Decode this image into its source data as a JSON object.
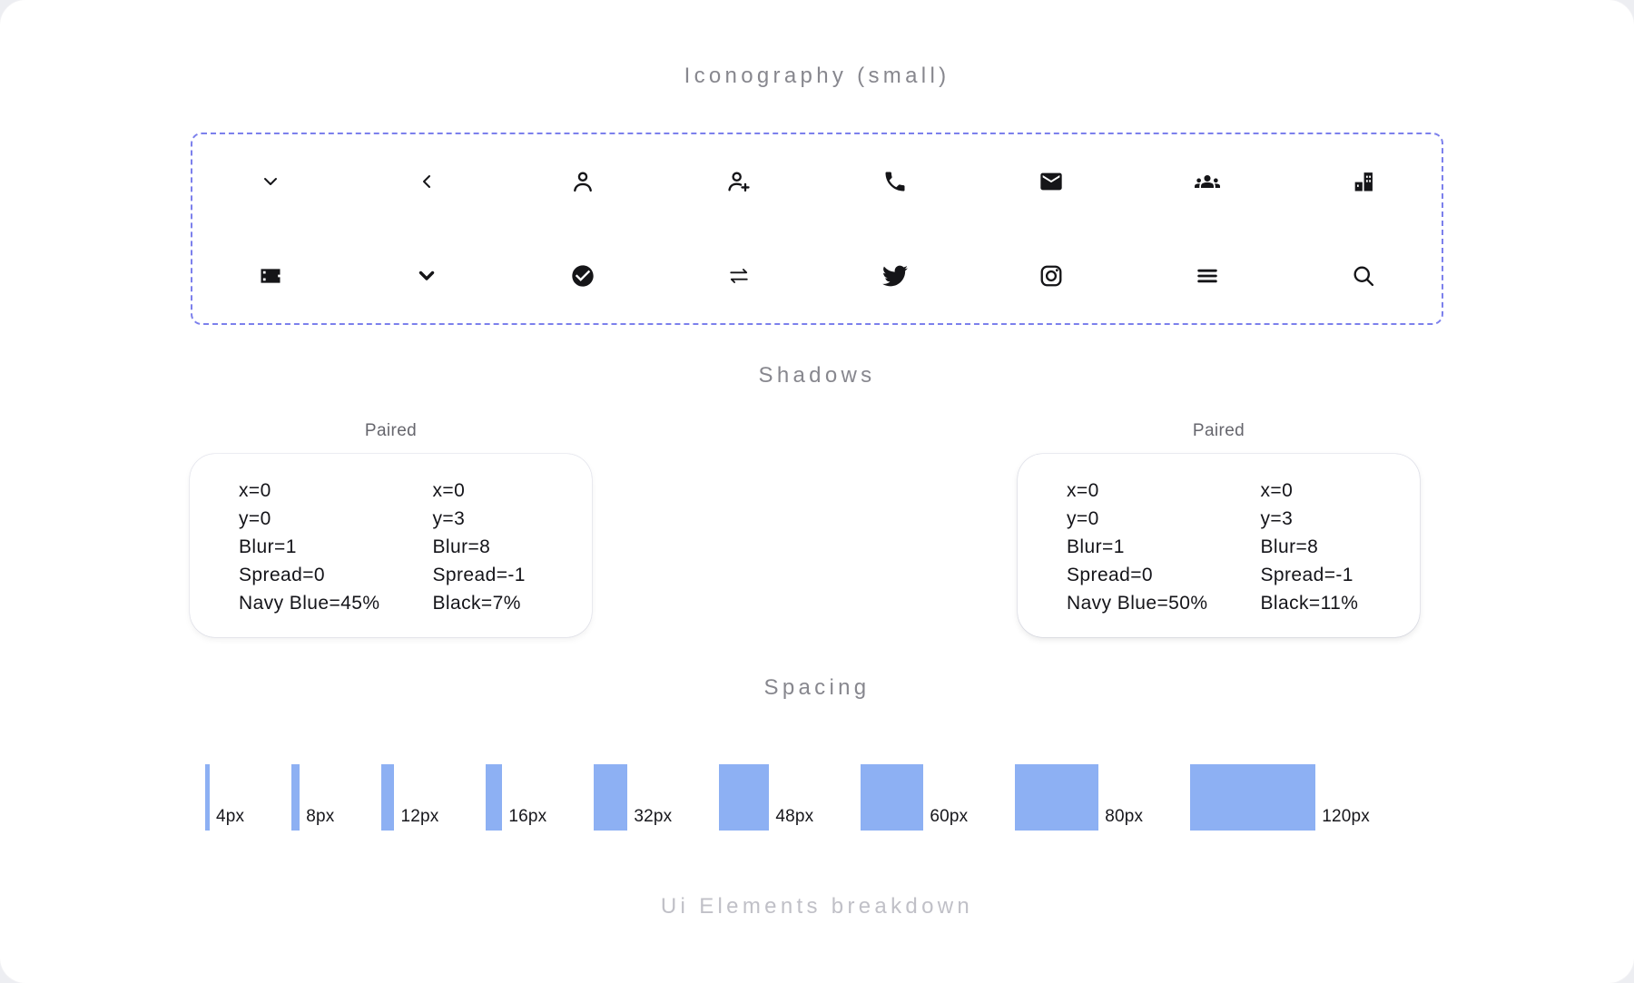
{
  "sections": {
    "iconography_title": "Iconography (small)",
    "shadows_title": "Shadows",
    "spacing_title": "Spacing",
    "breakdown_title": "Ui Elements breakdown"
  },
  "icons": {
    "row1": [
      "chevron-down",
      "chevron-left",
      "user",
      "user-add",
      "phone",
      "mail",
      "group",
      "office-building"
    ],
    "row2": [
      "movie",
      "chevron-down-bold",
      "check-circle",
      "swap-horizontal",
      "twitter",
      "instagram",
      "menu",
      "search"
    ]
  },
  "shadow_cards": [
    {
      "label": "Paired",
      "columns": [
        [
          "x=0",
          "y=0",
          "Blur=1",
          "Spread=0",
          "Navy Blue=45%"
        ],
        [
          "x=0",
          "y=3",
          "Blur=8",
          "Spread=-1",
          "Black=7%"
        ]
      ]
    },
    {
      "label": "Paired",
      "columns": [
        [
          "x=0",
          "y=0",
          "Blur=1",
          "Spread=0",
          "Navy Blue=50%"
        ],
        [
          "x=0",
          "y=3",
          "Blur=8",
          "Spread=-1",
          "Black=11%"
        ]
      ]
    }
  ],
  "spacing_tokens": [
    {
      "value": 4,
      "label": "4px"
    },
    {
      "value": 8,
      "label": "8px"
    },
    {
      "value": 12,
      "label": "12px"
    },
    {
      "value": 16,
      "label": "16px"
    },
    {
      "value": 32,
      "label": "32px"
    },
    {
      "value": 48,
      "label": "48px"
    },
    {
      "value": 60,
      "label": "60px"
    },
    {
      "value": 80,
      "label": "80px"
    },
    {
      "value": 120,
      "label": "120px"
    }
  ],
  "colors": {
    "accent_blue": "#8DB0F3",
    "dashed_border": "#7C80EC",
    "heading_gray": "#87878E",
    "muted_heading": "#C0C0C7",
    "text_dark": "#141419"
  }
}
